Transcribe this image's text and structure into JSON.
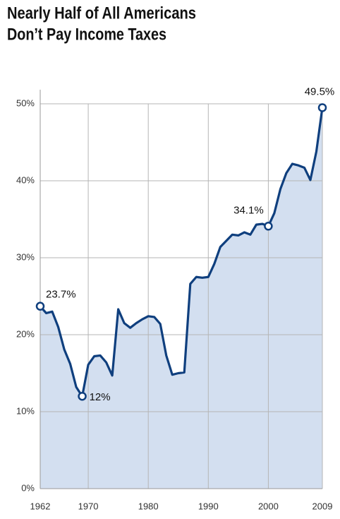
{
  "chart_data": {
    "type": "area",
    "title": [
      "Nearly Half of All Americans",
      "Don’t Pay Income Taxes"
    ],
    "x": [
      1962,
      1963,
      1964,
      1965,
      1966,
      1967,
      1968,
      1969,
      1970,
      1971,
      1972,
      1973,
      1974,
      1975,
      1976,
      1977,
      1978,
      1979,
      1980,
      1981,
      1982,
      1983,
      1984,
      1985,
      1986,
      1987,
      1988,
      1989,
      1990,
      1991,
      1992,
      1993,
      1994,
      1995,
      1996,
      1997,
      1998,
      1999,
      2000,
      2001,
      2002,
      2003,
      2004,
      2005,
      2006,
      2007,
      2008,
      2009
    ],
    "values": [
      23.7,
      22.8,
      23.0,
      21.0,
      18.1,
      16.2,
      13.2,
      12,
      16.1,
      17.2,
      17.3,
      16.4,
      14.7,
      23.3,
      21.5,
      20.9,
      21.5,
      22.0,
      22.4,
      22.3,
      21.4,
      17.3,
      14.8,
      15.0,
      15.1,
      26.6,
      27.5,
      27.4,
      27.5,
      29.2,
      31.4,
      32.2,
      33.0,
      32.9,
      33.3,
      33.0,
      34.3,
      34.4,
      34.1,
      35.8,
      38.9,
      41.0,
      42.2,
      42.0,
      41.7,
      40.1,
      43.8,
      49.5
    ],
    "value_labels": [
      "23.7%",
      null,
      null,
      null,
      null,
      null,
      null,
      "12%",
      null,
      null,
      null,
      null,
      null,
      null,
      null,
      null,
      null,
      null,
      null,
      null,
      null,
      null,
      null,
      null,
      null,
      null,
      null,
      null,
      null,
      null,
      null,
      null,
      null,
      null,
      null,
      null,
      null,
      null,
      "34.1%",
      null,
      null,
      null,
      null,
      null,
      null,
      null,
      null,
      "49.5%"
    ],
    "color": "#0f3f7e",
    "fill": "#d3dff0",
    "xlim": [
      1962,
      2009
    ],
    "xticks": [
      1962,
      1970,
      1980,
      1990,
      2000,
      2009
    ],
    "ylim": [
      0,
      50
    ],
    "yticks": [
      {
        "value": 0,
        "label": "0%"
      },
      {
        "value": 10,
        "label": "10%"
      },
      {
        "value": 20,
        "label": "20%"
      },
      {
        "value": 30,
        "label": "30%"
      },
      {
        "value": 40,
        "label": "40%"
      },
      {
        "value": 50,
        "label": "50%"
      }
    ],
    "grid": true
  }
}
